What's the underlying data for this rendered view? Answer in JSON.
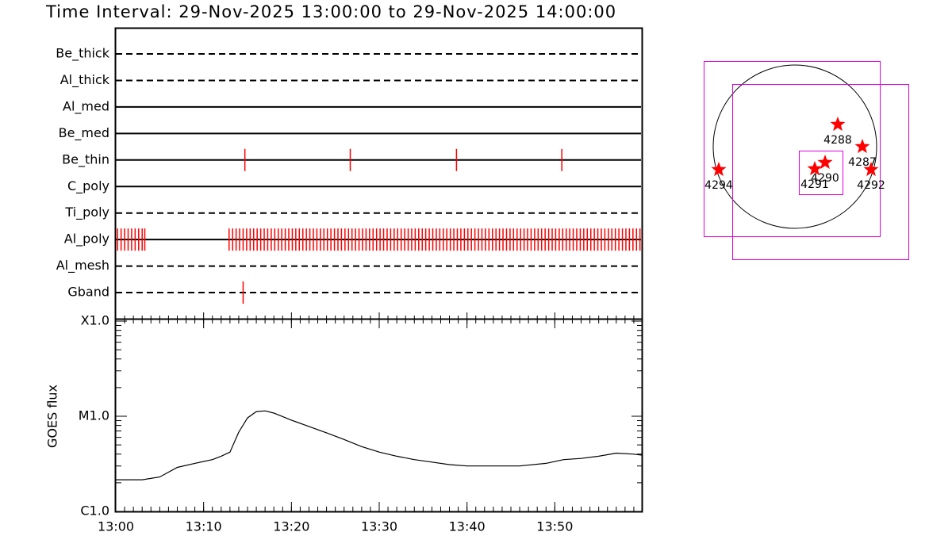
{
  "title": "Time Interval: 29-Nov-2025 13:00:00 to 29-Nov-2025 14:00:00",
  "chart_data": [
    {
      "type": "timeline",
      "color": "#ff0000",
      "xlim": [
        0,
        60
      ],
      "rows": [
        {
          "name": "Be_thick",
          "style": "dashed",
          "events": []
        },
        {
          "name": "Al_thick",
          "style": "dashed",
          "events": []
        },
        {
          "name": "Al_med",
          "style": "solid",
          "events": []
        },
        {
          "name": "Be_med",
          "style": "solid",
          "events": []
        },
        {
          "name": "Be_thin",
          "style": "solid",
          "events": [
            14.7,
            26.7,
            38.8,
            50.8
          ]
        },
        {
          "name": "C_poly",
          "style": "solid",
          "events": []
        },
        {
          "name": "Ti_poly",
          "style": "dashed",
          "events": []
        },
        {
          "name": "Al_poly",
          "style": "solid",
          "events": [
            0.2,
            0.6,
            1.0,
            1.4,
            1.8,
            2.2,
            2.6,
            3.0,
            3.3,
            12.9,
            13.3,
            13.7,
            14.1,
            14.5,
            14.9,
            15.3,
            15.7,
            16.1,
            16.5,
            16.9,
            17.3,
            17.7,
            18.1,
            18.5,
            18.9,
            19.3,
            19.7,
            20.1,
            20.5,
            20.9,
            21.3,
            21.7,
            22.1,
            22.5,
            22.9,
            23.3,
            23.7,
            24.1,
            24.5,
            24.9,
            25.3,
            25.7,
            26.1,
            26.5,
            26.9,
            27.3,
            27.7,
            28.1,
            28.5,
            28.9,
            29.3,
            29.7,
            30.1,
            30.5,
            30.9,
            31.3,
            31.7,
            32.1,
            32.5,
            32.9,
            33.3,
            33.7,
            34.1,
            34.5,
            34.9,
            35.3,
            35.7,
            36.1,
            36.5,
            36.9,
            37.3,
            37.7,
            38.1,
            38.5,
            38.9,
            39.3,
            39.7,
            40.1,
            40.5,
            40.9,
            41.3,
            41.7,
            42.1,
            42.5,
            42.9,
            43.3,
            43.7,
            44.1,
            44.5,
            44.9,
            45.3,
            45.7,
            46.1,
            46.5,
            46.9,
            47.3,
            47.7,
            48.1,
            48.5,
            48.9,
            49.3,
            49.7,
            50.1,
            50.5,
            50.9,
            51.3,
            51.7,
            52.1,
            52.5,
            52.9,
            53.3,
            53.7,
            54.1,
            54.5,
            54.9,
            55.3,
            55.7,
            56.1,
            56.5,
            56.9,
            57.3,
            57.7,
            58.1,
            58.5,
            58.9,
            59.3,
            59.7
          ]
        },
        {
          "name": "Al_mesh",
          "style": "dashed",
          "events": []
        },
        {
          "name": "Gband",
          "style": "dashed",
          "events": [
            14.5
          ]
        }
      ]
    },
    {
      "type": "line",
      "ylabel": "GOES flux",
      "color": "#000000",
      "log": true,
      "x": [
        0,
        3,
        5,
        7,
        9,
        11,
        12,
        13,
        14,
        15,
        16,
        17,
        18,
        20,
        22,
        24,
        26,
        28,
        30,
        32,
        34,
        36,
        38,
        40,
        43,
        46,
        49,
        51,
        53,
        55,
        57,
        59,
        60
      ],
      "values": [
        2.15e-06,
        2.15e-06,
        2.3e-06,
        2.9e-06,
        3.2e-06,
        3.5e-06,
        3.8e-06,
        4.2e-06,
        6.8e-06,
        9.6e-06,
        1.12e-05,
        1.14e-05,
        1.08e-05,
        9.1e-06,
        7.8e-06,
        6.7e-06,
        5.7e-06,
        4.8e-06,
        4.2e-06,
        3.8e-06,
        3.5e-06,
        3.3e-06,
        3.1e-06,
        3e-06,
        3e-06,
        3e-06,
        3.2e-06,
        3.5e-06,
        3.6e-06,
        3.8e-06,
        4.1e-06,
        4e-06,
        3.9e-06
      ],
      "xlim": [
        0,
        60
      ],
      "xticks": [
        {
          "value": 0,
          "label": "13:00"
        },
        {
          "value": 10,
          "label": "13:10"
        },
        {
          "value": 20,
          "label": "13:20"
        },
        {
          "value": 30,
          "label": "13:30"
        },
        {
          "value": 40,
          "label": "13:40"
        },
        {
          "value": 50,
          "label": "13:50"
        }
      ],
      "ylim": [
        1e-06,
        0.0001
      ],
      "yticks": [
        {
          "value": 1e-06,
          "label": "C1.0"
        },
        {
          "value": 1e-05,
          "label": "M1.0"
        },
        {
          "value": 0.0001,
          "label": "X1.0"
        }
      ]
    }
  ],
  "map": {
    "regions": [
      "4288",
      "4287",
      "4292",
      "4294",
      "4291",
      "4290"
    ]
  }
}
